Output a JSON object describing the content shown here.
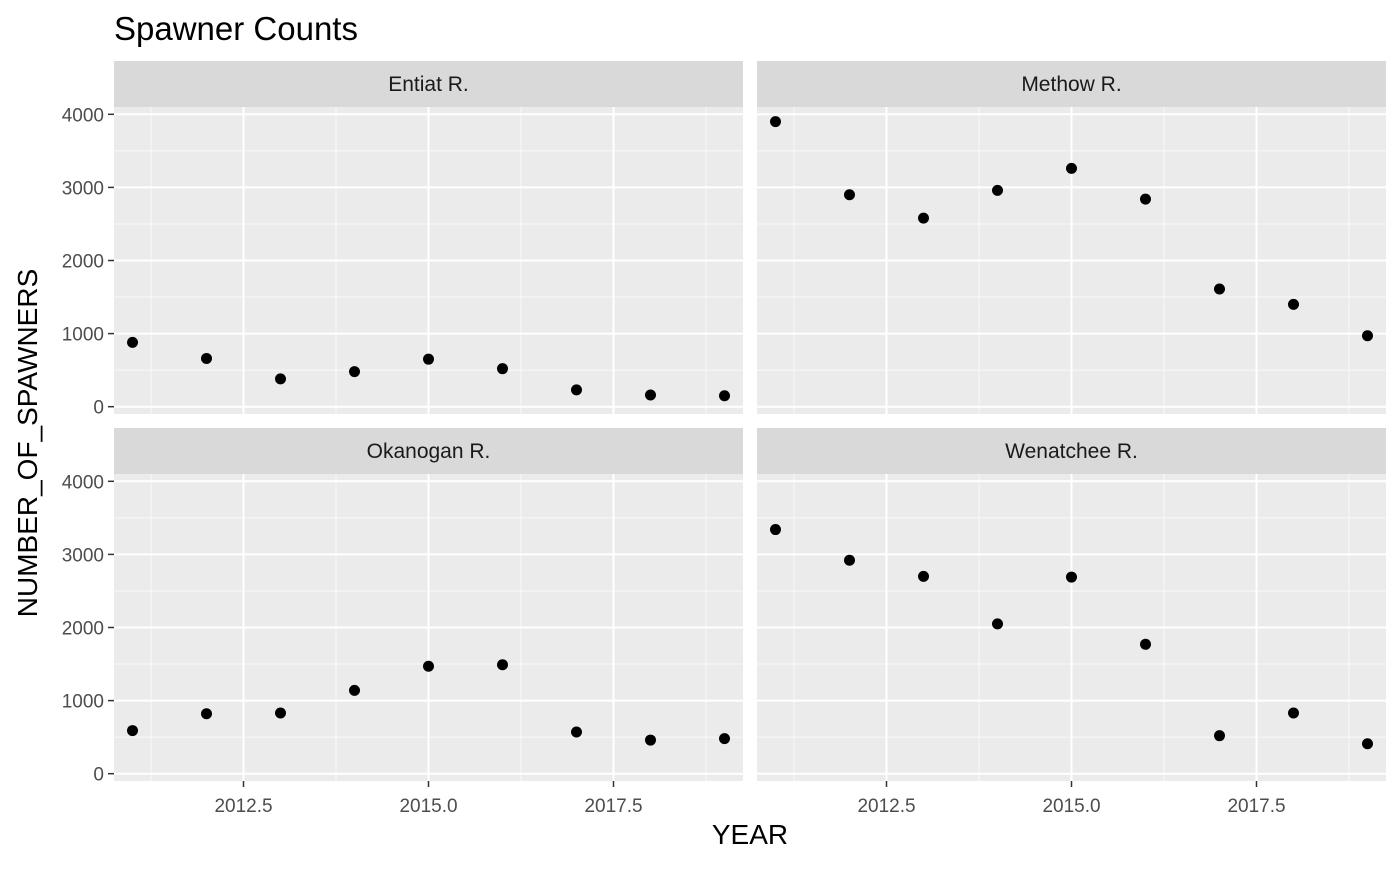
{
  "chart_data": {
    "type": "scatter",
    "title": "Spawner Counts",
    "xlabel": "YEAR",
    "ylabel": "NUMBER_OF_SPAWNERS",
    "xlim": [
      2010.75,
      2019.25
    ],
    "ylim": [
      -100,
      4100
    ],
    "x_ticks": [
      2012.5,
      2015.0,
      2017.5
    ],
    "x_tick_labels": [
      "2012.5",
      "2015.0",
      "2017.5"
    ],
    "y_ticks": [
      0,
      1000,
      2000,
      3000,
      4000
    ],
    "y_tick_labels": [
      "0",
      "1000",
      "2000",
      "3000",
      "4000"
    ],
    "grid": true,
    "facet_layout": "2x2",
    "colors": {
      "panel_bg": "#ebebeb",
      "strip_bg": "#d9d9d9",
      "grid_major": "#ffffff",
      "point": "#000000"
    },
    "panels": [
      {
        "label": "Entiat R.",
        "x": [
          2011,
          2012,
          2013,
          2014,
          2015,
          2016,
          2017,
          2018,
          2019
        ],
        "y": [
          880,
          660,
          380,
          480,
          650,
          520,
          230,
          160,
          150
        ]
      },
      {
        "label": "Methow R.",
        "x": [
          2011,
          2012,
          2013,
          2014,
          2015,
          2016,
          2017,
          2018,
          2019
        ],
        "y": [
          3900,
          2900,
          2580,
          2960,
          3260,
          2840,
          1610,
          1400,
          970
        ]
      },
      {
        "label": "Okanogan R.",
        "x": [
          2011,
          2012,
          2013,
          2014,
          2015,
          2016,
          2017,
          2018,
          2019
        ],
        "y": [
          590,
          820,
          830,
          1140,
          1470,
          1490,
          570,
          460,
          480
        ]
      },
      {
        "label": "Wenatchee R.",
        "x": [
          2011,
          2012,
          2013,
          2014,
          2015,
          2016,
          2017,
          2018,
          2019
        ],
        "y": [
          3340,
          2920,
          2700,
          2050,
          2690,
          1770,
          520,
          830,
          410
        ]
      }
    ]
  }
}
